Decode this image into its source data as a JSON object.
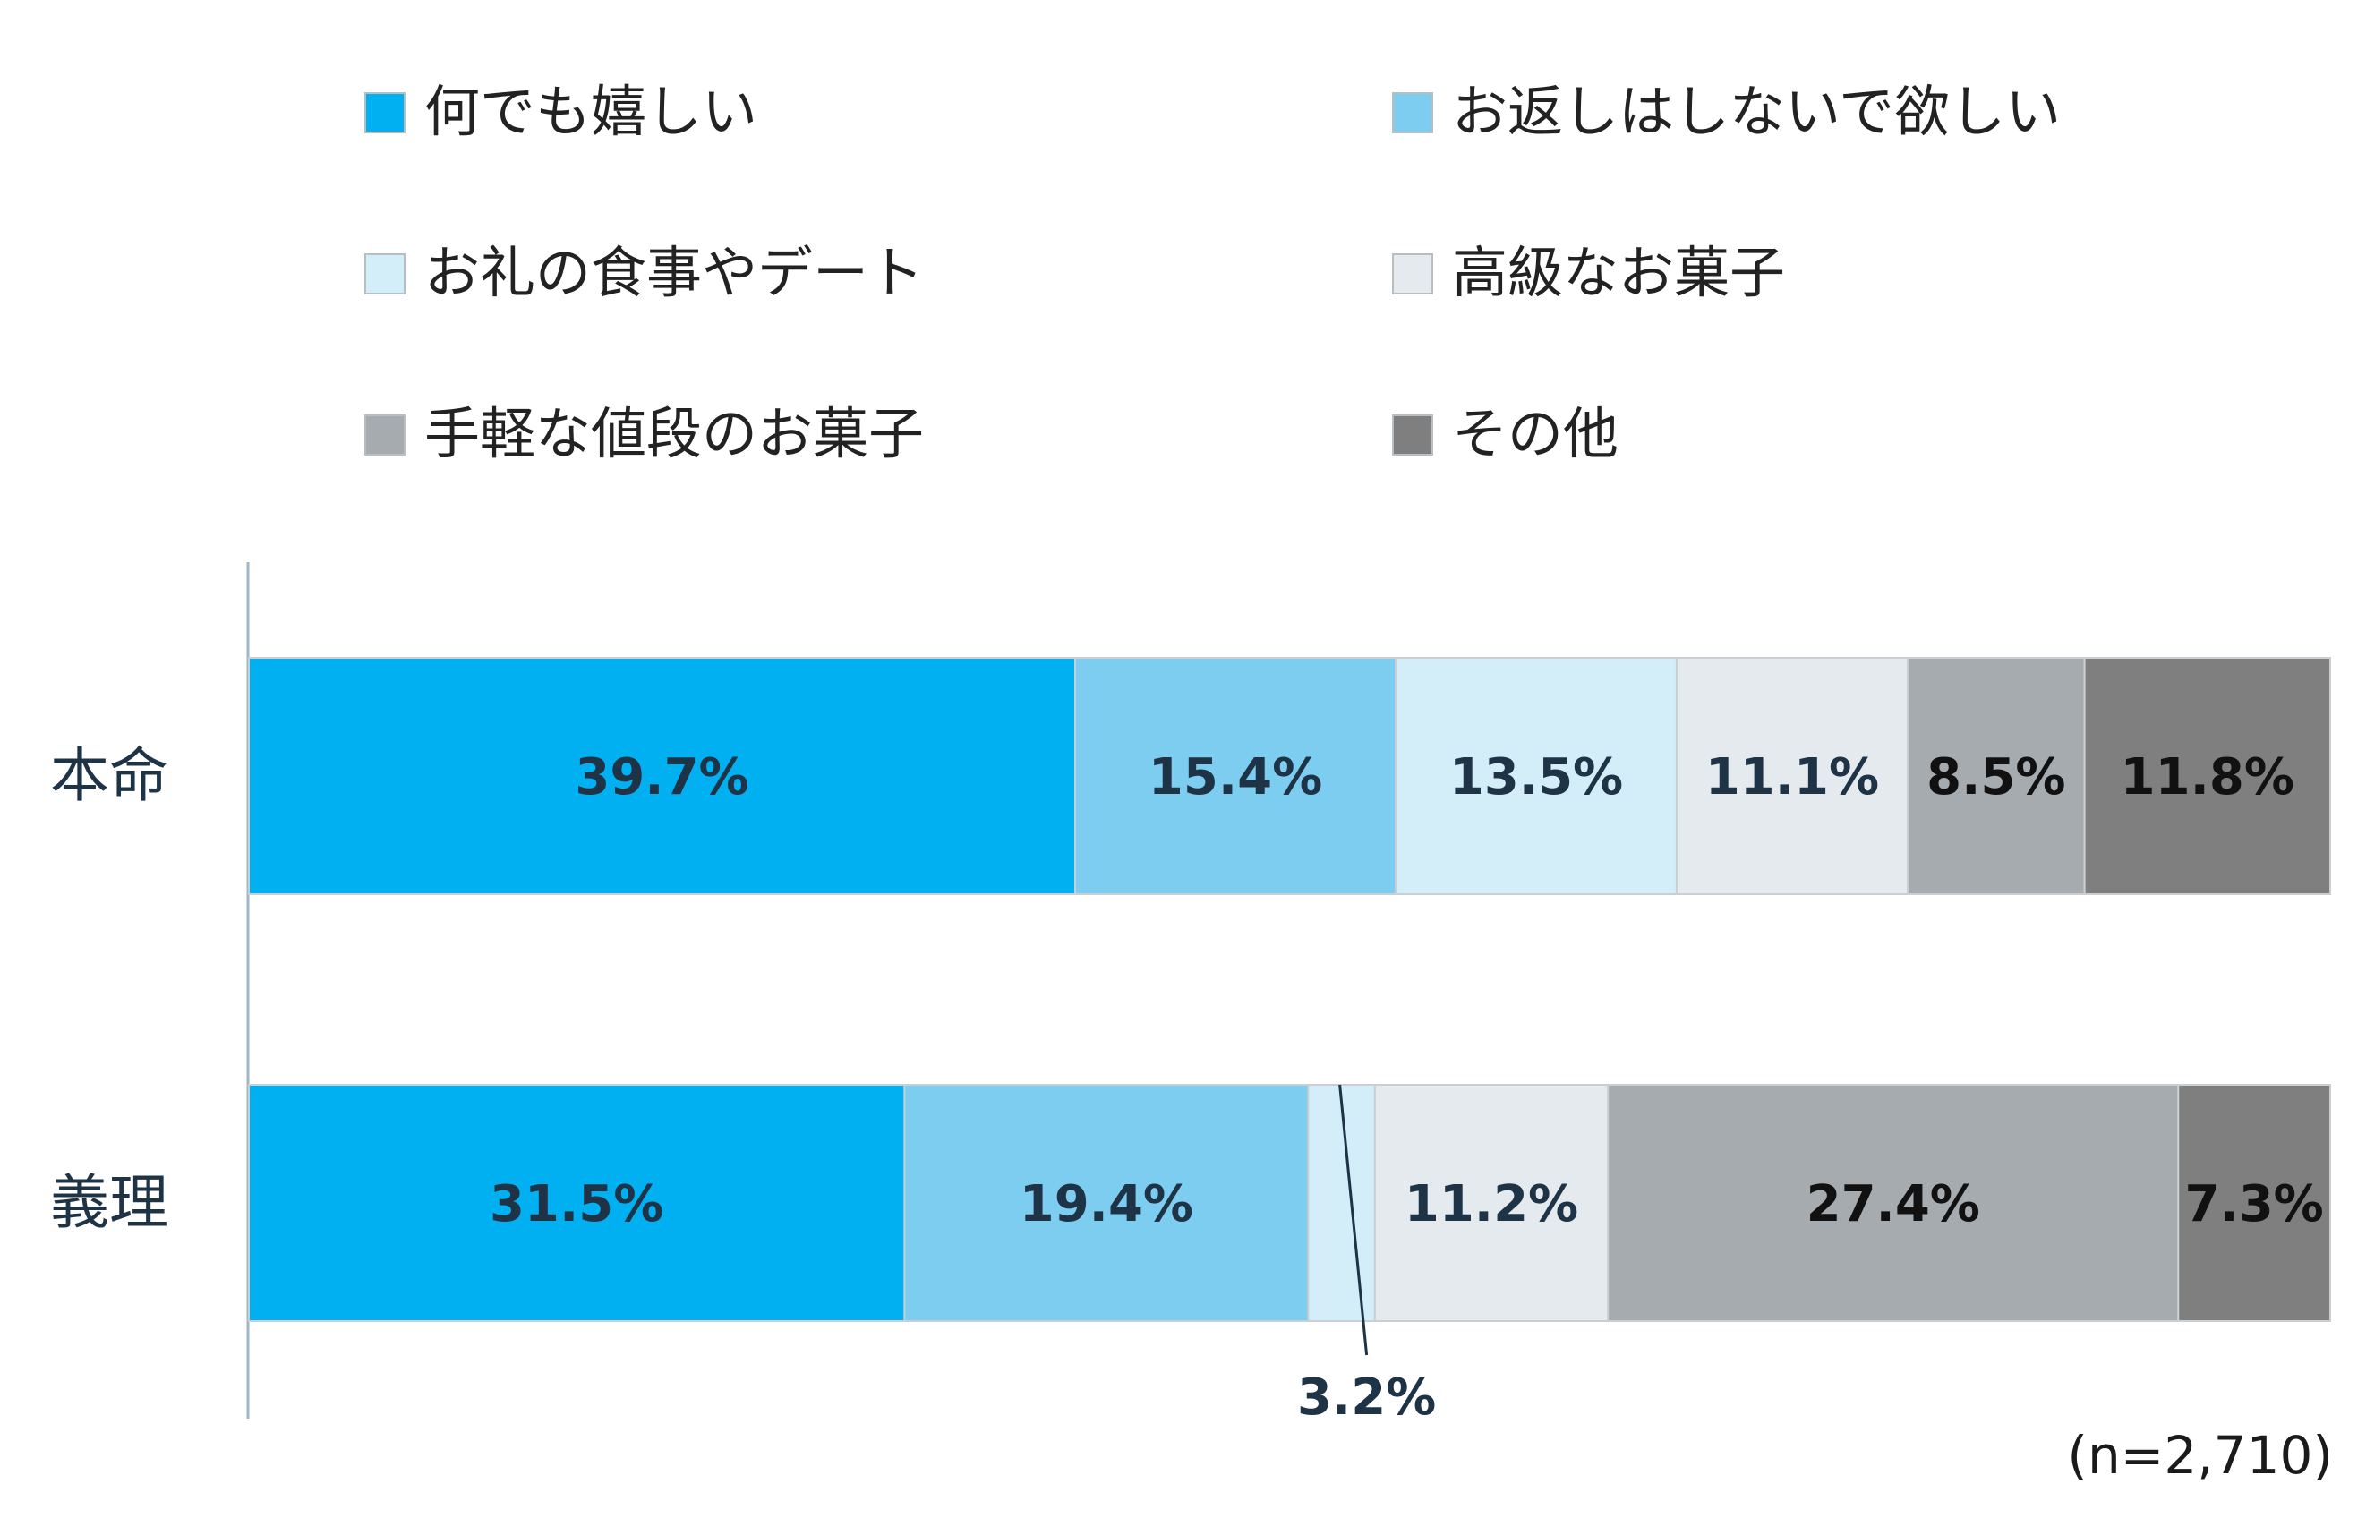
{
  "chart_data": {
    "type": "bar",
    "orientation": "horizontal",
    "stacked": true,
    "categories": [
      "本命",
      "義理"
    ],
    "series": [
      {
        "name": "何でも嬉しい",
        "values": [
          39.7,
          31.5
        ],
        "color": "#00b0f0",
        "label_color": "#1f3347"
      },
      {
        "name": "お返しはしないで欲しい",
        "values": [
          15.4,
          19.4
        ],
        "color": "#7ccdef",
        "label_color": "#1f3347"
      },
      {
        "name": "お礼の食事やデート",
        "values": [
          13.5,
          3.2
        ],
        "color": "#d4eef9",
        "label_color": "#1f3347"
      },
      {
        "name": "高級なお菓子",
        "values": [
          11.1,
          11.2
        ],
        "color": "#e4eaed",
        "label_color": "#1f3347"
      },
      {
        "name": "手軽な値段のお菓子",
        "values": [
          8.5,
          27.4
        ],
        "color": "#a5abaf",
        "label_color": "#111111"
      },
      {
        "name": "その他",
        "values": [
          11.8,
          7.3
        ],
        "color": "#7f7f7f",
        "label_color": "#111111"
      }
    ],
    "value_labels": [
      [
        "39.7%",
        "15.4%",
        "13.5%",
        "11.1%",
        "8.5%",
        "11.8%"
      ],
      [
        "31.5%",
        "19.4%",
        "3.2%",
        "11.2%",
        "27.4%",
        "7.3%"
      ]
    ],
    "callout_labels": [
      [
        false,
        false,
        false,
        false,
        false,
        false
      ],
      [
        false,
        false,
        true,
        false,
        false,
        false
      ]
    ],
    "xlim": [
      0,
      100
    ],
    "legend_position": "top",
    "grid": false,
    "note": "(n=2,710)"
  }
}
